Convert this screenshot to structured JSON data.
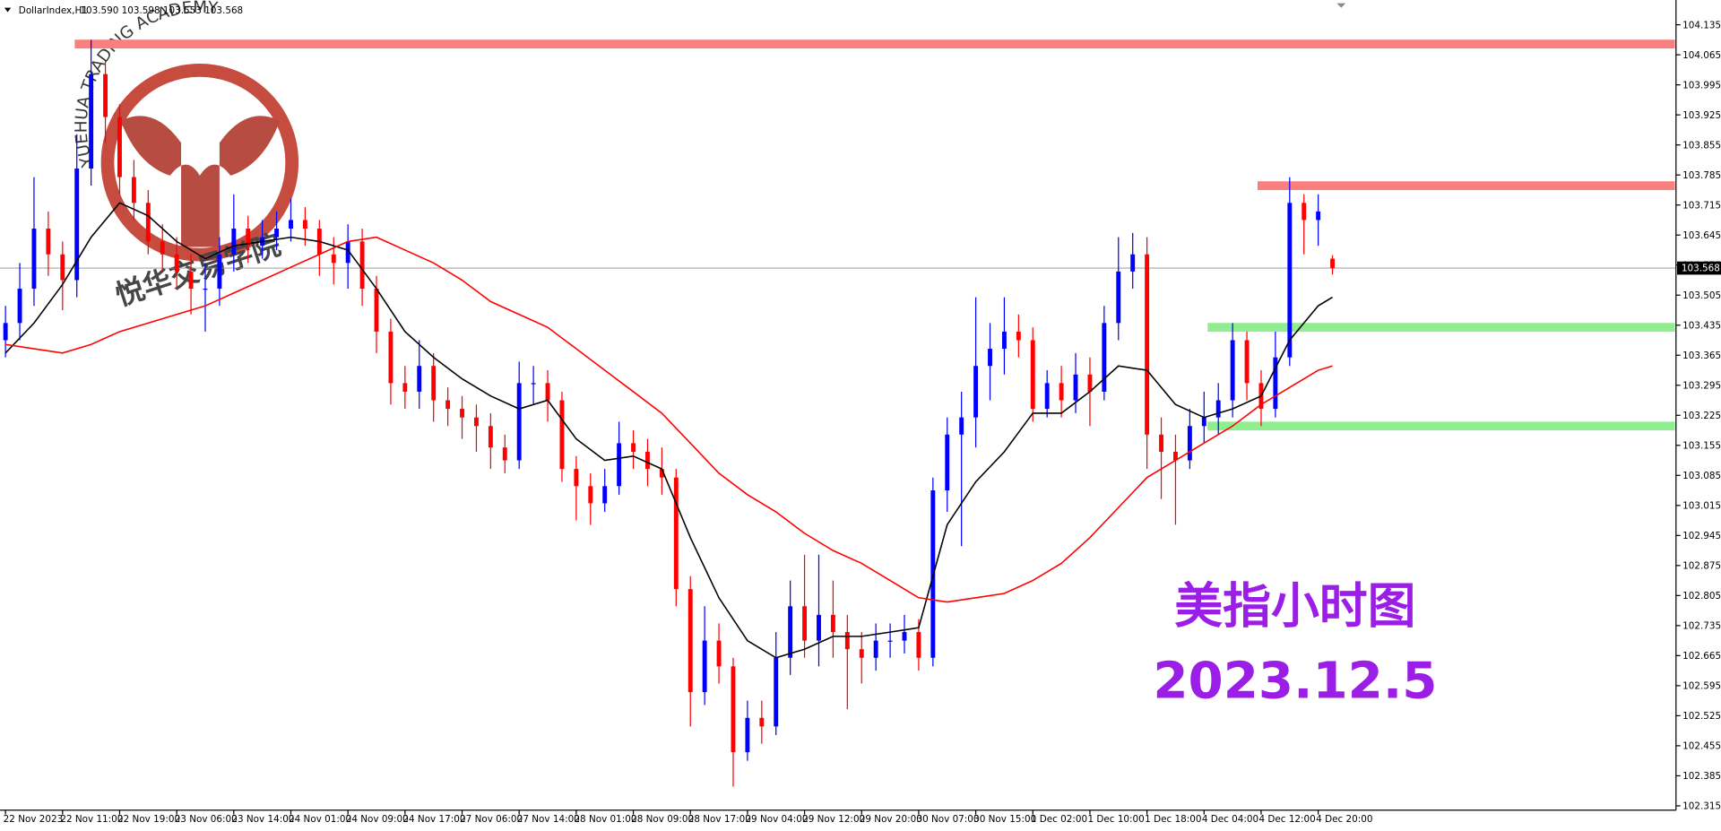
{
  "chart_data": {
    "type": "candlestick",
    "symbol": "DollarIndex,H1",
    "quote": "103.590 103.598 103.553 103.568",
    "x": [
      0,
      2,
      4,
      6,
      8,
      10,
      12,
      14,
      16,
      18,
      20,
      22,
      24,
      26,
      28,
      30,
      32,
      34,
      36,
      38,
      40,
      42,
      44,
      46,
      48,
      50,
      52,
      54,
      56,
      58,
      60,
      62,
      64,
      66,
      68,
      70,
      72,
      74,
      76,
      78,
      80,
      82,
      84,
      86,
      88,
      90,
      92,
      94,
      96,
      98,
      100,
      102,
      104,
      106,
      108,
      110,
      112,
      114,
      116,
      118,
      120,
      122,
      124,
      126,
      128,
      130,
      132,
      134,
      136,
      138,
      140,
      142,
      144,
      146,
      148,
      150,
      152,
      154,
      156,
      158,
      160,
      162,
      164,
      166,
      168,
      170,
      172,
      174,
      176,
      178,
      180,
      182,
      184,
      186
    ],
    "open": [
      103.4,
      103.44,
      103.52,
      103.66,
      103.6,
      103.54,
      103.8,
      104.02,
      103.92,
      103.78,
      103.72,
      103.63,
      103.6,
      103.56,
      103.52,
      103.52,
      103.6,
      103.66,
      103.62,
      103.64,
      103.66,
      103.68,
      103.66,
      103.6,
      103.58,
      103.63,
      103.52,
      103.42,
      103.3,
      103.28,
      103.34,
      103.26,
      103.24,
      103.22,
      103.2,
      103.15,
      103.12,
      103.3,
      103.3,
      103.26,
      103.1,
      103.06,
      103.02,
      103.06,
      103.16,
      103.14,
      103.1,
      103.08,
      102.82,
      102.58,
      102.7,
      102.64,
      102.44,
      102.52,
      102.5,
      102.66,
      102.78,
      102.7,
      102.76,
      102.72,
      102.68,
      102.66,
      102.7,
      102.7,
      102.72,
      102.66,
      103.05,
      103.18,
      103.22,
      103.34,
      103.38,
      103.42,
      103.4,
      103.24,
      103.3,
      103.26,
      103.32,
      103.28,
      103.44,
      103.56,
      103.6,
      103.18,
      103.14,
      103.12,
      103.2,
      103.22,
      103.26,
      103.4,
      103.3,
      103.24,
      103.36,
      103.72,
      103.68,
      103.59
    ],
    "high": [
      103.48,
      103.58,
      103.78,
      103.7,
      103.63,
      103.88,
      104.1,
      104.05,
      103.95,
      103.82,
      103.75,
      103.67,
      103.64,
      103.6,
      103.58,
      103.64,
      103.74,
      103.69,
      103.68,
      103.7,
      103.73,
      103.71,
      103.68,
      103.64,
      103.67,
      103.66,
      103.55,
      103.45,
      103.34,
      103.4,
      103.37,
      103.29,
      103.27,
      103.25,
      103.23,
      103.18,
      103.35,
      103.34,
      103.33,
      103.28,
      103.13,
      103.09,
      103.1,
      103.21,
      103.19,
      103.17,
      103.15,
      103.1,
      102.85,
      102.78,
      102.74,
      102.66,
      102.56,
      102.56,
      102.72,
      102.84,
      102.9,
      102.9,
      102.84,
      102.76,
      102.72,
      102.74,
      102.74,
      102.76,
      102.75,
      103.08,
      103.22,
      103.28,
      103.5,
      103.44,
      103.5,
      103.46,
      103.43,
      103.33,
      103.34,
      103.37,
      103.36,
      103.48,
      103.64,
      103.65,
      103.64,
      103.22,
      103.18,
      103.24,
      103.28,
      103.3,
      103.44,
      103.42,
      103.33,
      103.42,
      103.78,
      103.74,
      103.74,
      103.598
    ],
    "low": [
      103.36,
      103.4,
      103.48,
      103.55,
      103.47,
      103.5,
      103.76,
      103.86,
      103.74,
      103.68,
      103.6,
      103.56,
      103.52,
      103.46,
      103.42,
      103.48,
      103.56,
      103.58,
      103.59,
      103.61,
      103.63,
      103.62,
      103.55,
      103.53,
      103.52,
      103.48,
      103.37,
      103.25,
      103.24,
      103.24,
      103.21,
      103.2,
      103.17,
      103.14,
      103.1,
      103.09,
      103.1,
      103.25,
      103.21,
      103.07,
      102.98,
      102.97,
      103.0,
      103.04,
      103.1,
      103.06,
      103.04,
      102.78,
      102.5,
      102.55,
      102.6,
      102.36,
      102.42,
      102.46,
      102.48,
      102.62,
      102.66,
      102.64,
      102.66,
      102.54,
      102.6,
      102.63,
      102.66,
      102.67,
      102.63,
      102.64,
      103.0,
      102.92,
      103.15,
      103.26,
      103.32,
      103.36,
      103.21,
      103.22,
      103.22,
      103.23,
      103.2,
      103.26,
      103.4,
      103.52,
      103.1,
      103.03,
      102.97,
      103.1,
      103.16,
      103.18,
      103.22,
      103.26,
      103.2,
      103.22,
      103.34,
      103.6,
      103.62,
      103.553
    ],
    "close": [
      103.44,
      103.52,
      103.66,
      103.6,
      103.54,
      103.8,
      104.02,
      103.92,
      103.78,
      103.72,
      103.63,
      103.6,
      103.56,
      103.52,
      103.52,
      103.6,
      103.66,
      103.62,
      103.64,
      103.66,
      103.68,
      103.66,
      103.6,
      103.58,
      103.63,
      103.52,
      103.42,
      103.3,
      103.28,
      103.34,
      103.26,
      103.24,
      103.22,
      103.2,
      103.15,
      103.12,
      103.3,
      103.3,
      103.26,
      103.1,
      103.06,
      103.02,
      103.06,
      103.16,
      103.14,
      103.1,
      103.08,
      102.82,
      102.58,
      102.7,
      102.64,
      102.44,
      102.52,
      102.5,
      102.66,
      102.78,
      102.7,
      102.76,
      102.72,
      102.68,
      102.66,
      102.7,
      102.7,
      102.72,
      102.66,
      103.05,
      103.18,
      103.22,
      103.34,
      103.38,
      103.42,
      103.4,
      103.24,
      103.3,
      103.26,
      103.32,
      103.28,
      103.44,
      103.56,
      103.6,
      103.18,
      103.14,
      103.12,
      103.2,
      103.22,
      103.26,
      103.4,
      103.3,
      103.24,
      103.36,
      103.72,
      103.68,
      103.7,
      103.568
    ],
    "up_color": "#0000ff",
    "down_color": "#ff0000",
    "line_x": [
      0,
      4,
      8,
      12,
      16,
      20,
      24,
      28,
      32,
      36,
      40,
      44,
      48,
      52,
      56,
      60,
      64,
      68,
      72,
      76,
      80,
      84,
      88,
      92,
      96,
      100,
      104,
      108,
      112,
      116,
      120,
      124,
      128,
      132,
      136,
      140,
      144,
      148,
      152,
      156,
      160,
      164,
      168,
      172,
      176,
      180,
      184,
      186
    ],
    "lines": [
      {
        "color": "#000000",
        "values": [
          103.37,
          103.44,
          103.53,
          103.64,
          103.72,
          103.69,
          103.63,
          103.59,
          103.62,
          103.63,
          103.64,
          103.63,
          103.61,
          103.52,
          103.42,
          103.36,
          103.31,
          103.27,
          103.24,
          103.26,
          103.17,
          103.12,
          103.13,
          103.1,
          102.94,
          102.8,
          102.7,
          102.66,
          102.68,
          102.71,
          102.71,
          102.72,
          102.73,
          102.97,
          103.07,
          103.14,
          103.23,
          103.23,
          103.28,
          103.34,
          103.33,
          103.25,
          103.22,
          103.24,
          103.27,
          103.4,
          103.48,
          103.5
        ]
      },
      {
        "color": "#ff0000",
        "values": [
          103.39,
          103.38,
          103.37,
          103.39,
          103.42,
          103.44,
          103.46,
          103.48,
          103.51,
          103.54,
          103.57,
          103.6,
          103.63,
          103.64,
          103.61,
          103.58,
          103.54,
          103.49,
          103.46,
          103.43,
          103.38,
          103.33,
          103.28,
          103.23,
          103.16,
          103.09,
          103.04,
          103.0,
          102.95,
          102.91,
          102.88,
          102.84,
          102.8,
          102.79,
          102.8,
          102.81,
          102.84,
          102.88,
          102.94,
          103.01,
          103.08,
          103.12,
          103.16,
          103.2,
          103.25,
          103.29,
          103.33,
          103.34
        ]
      }
    ],
    "levels": [
      {
        "value": 104.09,
        "from": 9.7,
        "color": "#fa8080"
      },
      {
        "value": 103.76,
        "from": 175.5,
        "color": "#fa8080"
      },
      {
        "value": 103.43,
        "from": 168.5,
        "color": "#90ee90"
      },
      {
        "value": 103.2,
        "from": 168.5,
        "color": "#90ee90"
      }
    ],
    "last_price": 103.568,
    "xlim": [
      -0.77,
      234.15
    ],
    "xticks": [
      {
        "value": 0,
        "label": "22 Nov 2023"
      },
      {
        "value": 8,
        "label": "22 Nov 11:00"
      },
      {
        "value": 16,
        "label": "22 Nov 19:00"
      },
      {
        "value": 24,
        "label": "23 Nov 06:00"
      },
      {
        "value": 32,
        "label": "23 Nov 14:00"
      },
      {
        "value": 40,
        "label": "24 Nov 01:00"
      },
      {
        "value": 48,
        "label": "24 Nov 09:00"
      },
      {
        "value": 56,
        "label": "24 Nov 17:00"
      },
      {
        "value": 64,
        "label": "27 Nov 06:00"
      },
      {
        "value": 72,
        "label": "27 Nov 14:00"
      },
      {
        "value": 80,
        "label": "28 Nov 01:00"
      },
      {
        "value": 88,
        "label": "28 Nov 09:00"
      },
      {
        "value": 96,
        "label": "28 Nov 17:00"
      },
      {
        "value": 104,
        "label": "29 Nov 04:00"
      },
      {
        "value": 112,
        "label": "29 Nov 12:00"
      },
      {
        "value": 120,
        "label": "29 Nov 20:00"
      },
      {
        "value": 128,
        "label": "30 Nov 07:00"
      },
      {
        "value": 136,
        "label": "30 Nov 15:00"
      },
      {
        "value": 144,
        "label": "1 Dec 02:00"
      },
      {
        "value": 152,
        "label": "1 Dec 10:00"
      },
      {
        "value": 160,
        "label": "1 Dec 18:00"
      },
      {
        "value": 168,
        "label": "4 Dec 04:00"
      },
      {
        "value": 176,
        "label": "4 Dec 12:00"
      },
      {
        "value": 184,
        "label": "4 Dec 20:00"
      }
    ],
    "ylim": [
      102.305,
      104.185
    ],
    "yticks": [
      104.135,
      104.065,
      103.995,
      103.925,
      103.855,
      103.785,
      103.715,
      103.645,
      103.575,
      103.505,
      103.435,
      103.365,
      103.295,
      103.225,
      103.155,
      103.085,
      103.015,
      102.945,
      102.875,
      102.805,
      102.735,
      102.665,
      102.595,
      102.525,
      102.455,
      102.385,
      102.315
    ],
    "annotations": [
      "美指小时图",
      "2023.12.5"
    ],
    "annotation_color": "#9b1ee6",
    "watermark": {
      "text": "YUEHUA TRADING ACADEMY",
      "chinese": "悦华交易学院"
    }
  }
}
